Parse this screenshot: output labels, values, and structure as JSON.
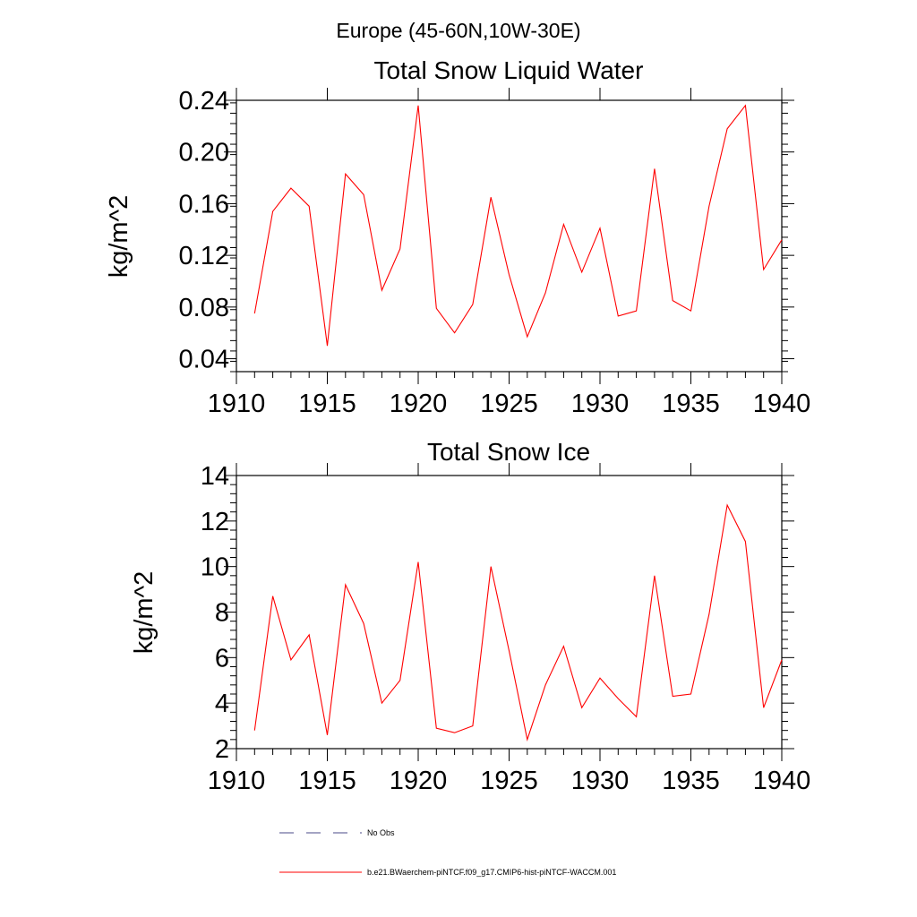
{
  "page": {
    "title": "Europe (45-60N,10W-30E)"
  },
  "chart_data": [
    {
      "type": "line",
      "title": "Total Snow Liquid Water",
      "ylabel": "kg/m^2",
      "xlabel": "",
      "xlim": [
        1910,
        1940
      ],
      "ylim": [
        0.03,
        0.24
      ],
      "xticks": [
        1910,
        1915,
        1920,
        1925,
        1930,
        1935,
        1940
      ],
      "xtick_labels": [
        "1910",
        "1915",
        "1920",
        "1925",
        "1930",
        "1935",
        "1940"
      ],
      "yticks": [
        0.04,
        0.08,
        0.12,
        0.16,
        0.2,
        0.24
      ],
      "ytick_labels": [
        "0.04",
        "0.08",
        "0.12",
        "0.16",
        "0.20",
        "0.24"
      ],
      "grid": false,
      "x": [
        1911,
        1912,
        1913,
        1914,
        1915,
        1916,
        1917,
        1918,
        1919,
        1920,
        1921,
        1922,
        1923,
        1924,
        1925,
        1926,
        1927,
        1928,
        1929,
        1930,
        1931,
        1932,
        1933,
        1934,
        1935,
        1936,
        1937,
        1938,
        1939,
        1940
      ],
      "series": [
        {
          "name": "b.e21.BWaerchem-piNTCF.f09_g17.CMIP6-hist-piNTCF-WACCM.001",
          "color": "#ff0000",
          "values": [
            0.075,
            0.154,
            0.172,
            0.158,
            0.05,
            0.183,
            0.167,
            0.093,
            0.125,
            0.236,
            0.079,
            0.06,
            0.082,
            0.165,
            0.105,
            0.057,
            0.091,
            0.144,
            0.107,
            0.141,
            0.073,
            0.077,
            0.187,
            0.085,
            0.077,
            0.158,
            0.218,
            0.236,
            0.109,
            0.132
          ]
        }
      ]
    },
    {
      "type": "line",
      "title": "Total Snow Ice",
      "ylabel": "kg/m^2",
      "xlabel": "",
      "xlim": [
        1910,
        1940
      ],
      "ylim": [
        2,
        14
      ],
      "xticks": [
        1910,
        1915,
        1920,
        1925,
        1930,
        1935,
        1940
      ],
      "xtick_labels": [
        "1910",
        "1915",
        "1920",
        "1925",
        "1930",
        "1935",
        "1940"
      ],
      "yticks": [
        2,
        4,
        6,
        8,
        10,
        12,
        14
      ],
      "ytick_labels": [
        "2",
        "4",
        "6",
        "8",
        "10",
        "12",
        "14"
      ],
      "grid": false,
      "x": [
        1911,
        1912,
        1913,
        1914,
        1915,
        1916,
        1917,
        1918,
        1919,
        1920,
        1921,
        1922,
        1923,
        1924,
        1925,
        1926,
        1927,
        1928,
        1929,
        1930,
        1931,
        1932,
        1933,
        1934,
        1935,
        1936,
        1937,
        1938,
        1939,
        1940
      ],
      "series": [
        {
          "name": "b.e21.BWaerchem-piNTCF.f09_g17.CMIP6-hist-piNTCF-WACCM.001",
          "color": "#ff0000",
          "values": [
            2.8,
            8.7,
            5.9,
            7.0,
            2.6,
            9.2,
            7.5,
            4.0,
            5.0,
            10.2,
            2.9,
            2.7,
            3.0,
            10.0,
            6.3,
            2.4,
            4.8,
            6.5,
            3.8,
            5.1,
            4.2,
            3.4,
            9.6,
            4.3,
            4.4,
            7.9,
            12.7,
            11.1,
            3.8,
            5.9
          ]
        }
      ]
    }
  ],
  "legend": {
    "items": [
      {
        "label": "No Obs",
        "color": "#4a4a8a",
        "style": "dashed"
      },
      {
        "label": "b.e21.BWaerchem-piNTCF.f09_g17.CMIP6-hist-piNTCF-WACCM.001",
        "color": "#ff0000",
        "style": "solid"
      }
    ]
  }
}
